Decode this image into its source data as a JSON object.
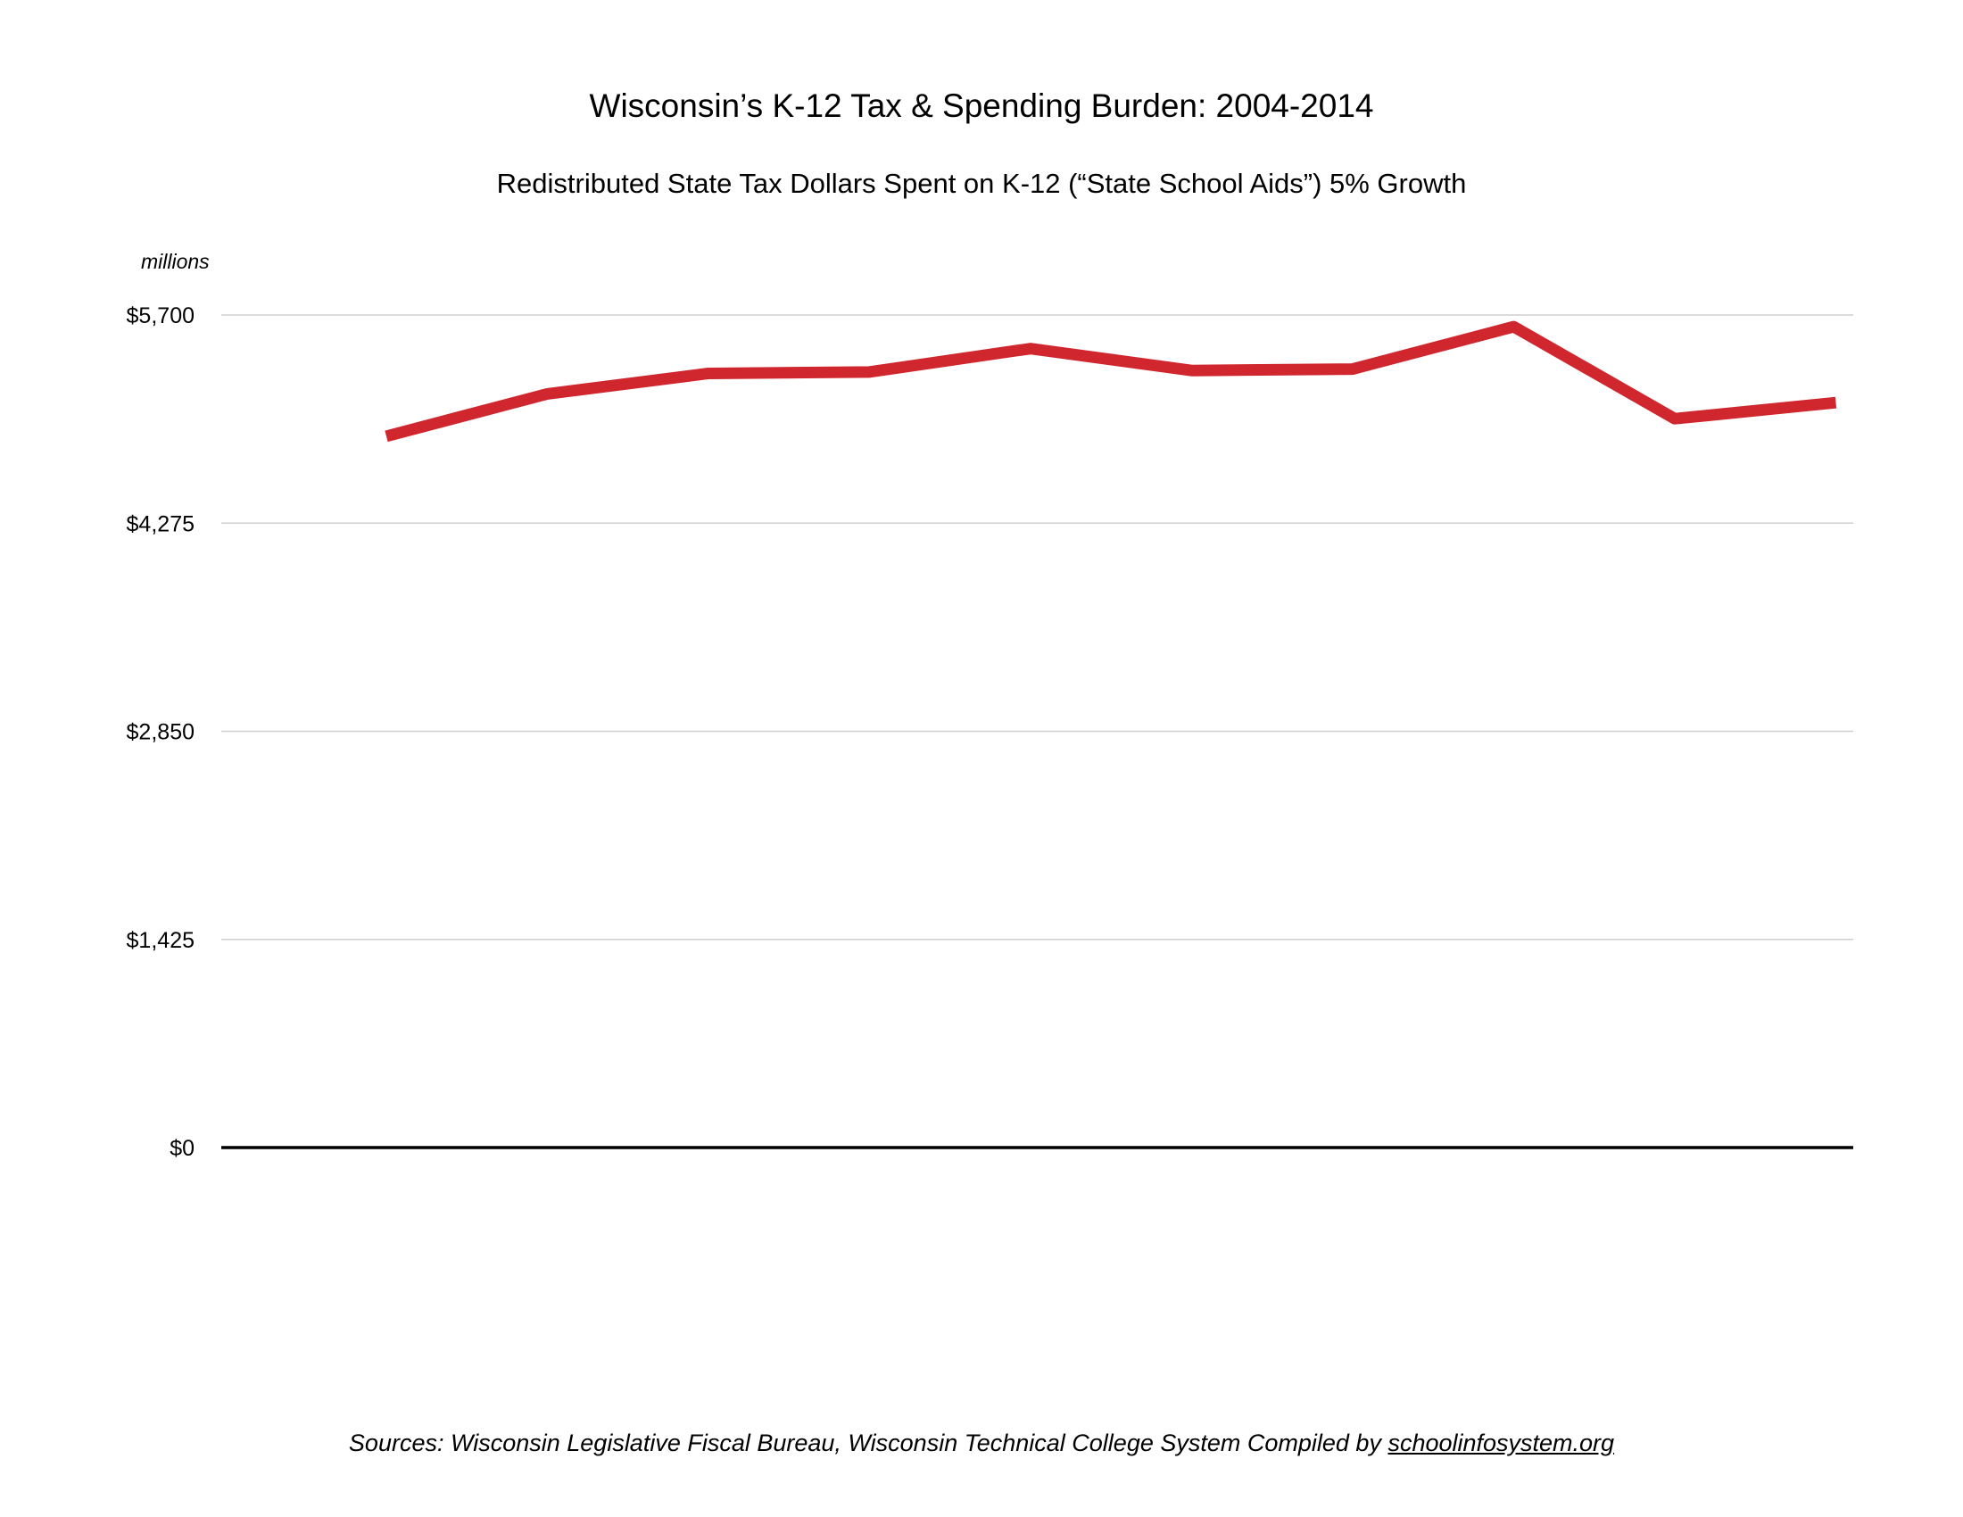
{
  "chart_data": {
    "type": "line",
    "title": "Wisconsin’s K-12 Tax & Spending Burden: 2004-2014",
    "subtitle": "Redistributed State Tax Dollars Spent on K-12 (“State School Aids”) 5% Growth",
    "units_label": "millions",
    "ylabel": "",
    "xlabel": "",
    "ylim": [
      0,
      5700
    ],
    "yticks": [
      0,
      1425,
      2850,
      4275,
      5700
    ],
    "ytick_labels": [
      "$0",
      "$1,425",
      "$2,850",
      "$4,275",
      "$5,700"
    ],
    "grid": true,
    "legend": "none",
    "line_color": "#d0262e",
    "series": [
      {
        "values": [
          4870,
          5160,
          5300,
          5310,
          5470,
          5320,
          5330,
          5620,
          4990,
          5100
        ]
      }
    ]
  },
  "footer": {
    "sources_text": "Sources: Wisconsin Legislative Fiscal Bureau, Wisconsin Technical College System  Compiled by ",
    "link_text": "schoolinfosystem.org"
  }
}
